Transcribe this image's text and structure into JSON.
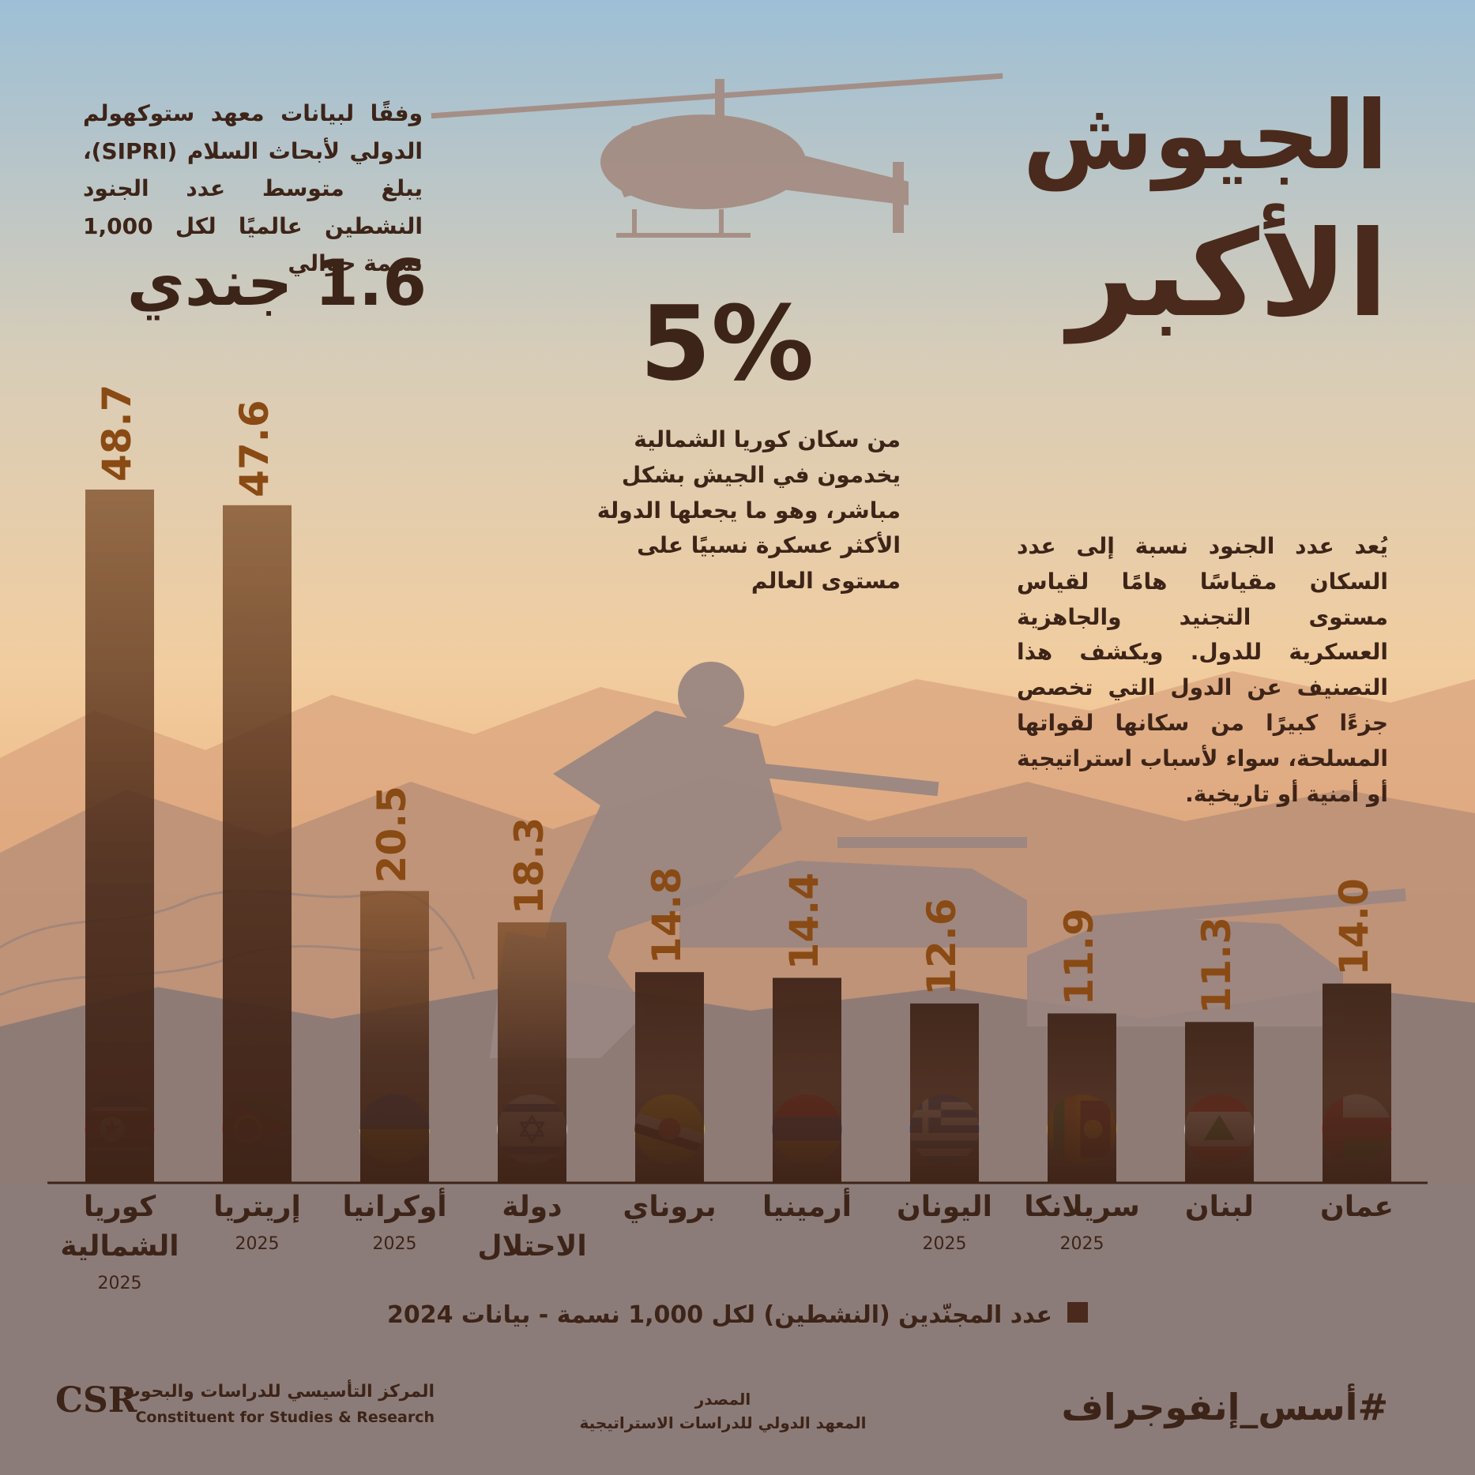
{
  "title": {
    "line1": "الجيوش",
    "line2": "الأكبر"
  },
  "intro_block": {
    "text": "وفقًا لبيانات معهد ستوكهولم الدولي لأبحاث السلام (SIPRI)، يبلغ متوسط عدد الجنود النشطين عالميًا لكل 1,000 نسمة حوالي",
    "highlight": "1.6 جندي"
  },
  "stat_block": {
    "value": "5%",
    "text": "من سكان كوريا الشمالية يخدمون في الجيش بشكل مباشر، وهو ما يجعلها الدولة الأكثر عسكرة نسبيًا على مستوى العالم"
  },
  "explainer_block": {
    "text": "يُعد عدد الجنود نسبة إلى عدد السكان مقياسًا هامًا لقياس مستوى التجنيد والجاهزية العسكرية للدول. ويكشف هذا التصنيف عن الدول التي تخصص جزءًا كبيرًا من سكانها لقواتها المسلحة، سواء لأسباب استراتيجية أو أمنية أو تاريخية."
  },
  "chart_data": {
    "type": "bar",
    "categories": [
      "كوريا الشمالية",
      "إريتريا",
      "أوكرانيا",
      "دولة الاحتلال",
      "بروناي",
      "أرمينيا",
      "اليونان",
      "سريلانكا",
      "لبنان",
      "عمان"
    ],
    "category_notes": [
      "2025",
      "2025",
      "2025",
      "",
      "",
      "",
      "2025",
      "2025",
      "",
      ""
    ],
    "values": [
      48.7,
      47.6,
      20.5,
      18.3,
      14.8,
      14.4,
      12.6,
      11.9,
      11.3,
      14.0
    ],
    "value_labels": [
      "48.7",
      "47.6",
      "20.5",
      "18.3",
      "14.8",
      "14.4",
      "12.6",
      "11.9",
      "11.3",
      "14.0"
    ],
    "flags": [
      "flag-north-korea-icon",
      "flag-eritrea-icon",
      "flag-ukraine-icon",
      "flag-israel-icon",
      "flag-brunei-icon",
      "flag-armenia-icon",
      "flag-greece-icon",
      "flag-sri-lanka-icon",
      "flag-lebanon-icon",
      "flag-oman-icon"
    ],
    "legend": "عدد المجنّدين (النشطين) لكل 1,000 نسمة - بيانات 2024",
    "legend_position": "bottom-center",
    "ylim": [
      0,
      55
    ],
    "grid": false,
    "colors": {
      "bar_dark": "#3f2418",
      "value_label": "#8a4a14"
    }
  },
  "footer": {
    "org_logo": "CSR",
    "org_name_ar": "المركز التأسيسي للدراسات والبحوث",
    "org_name_en": "Constituent for Studies & Research",
    "source_label": "المصدر",
    "source_name": "المعهد الدولي للدراسات الاستراتيجية",
    "hashtag": "#أسس_إنفوجراف"
  }
}
